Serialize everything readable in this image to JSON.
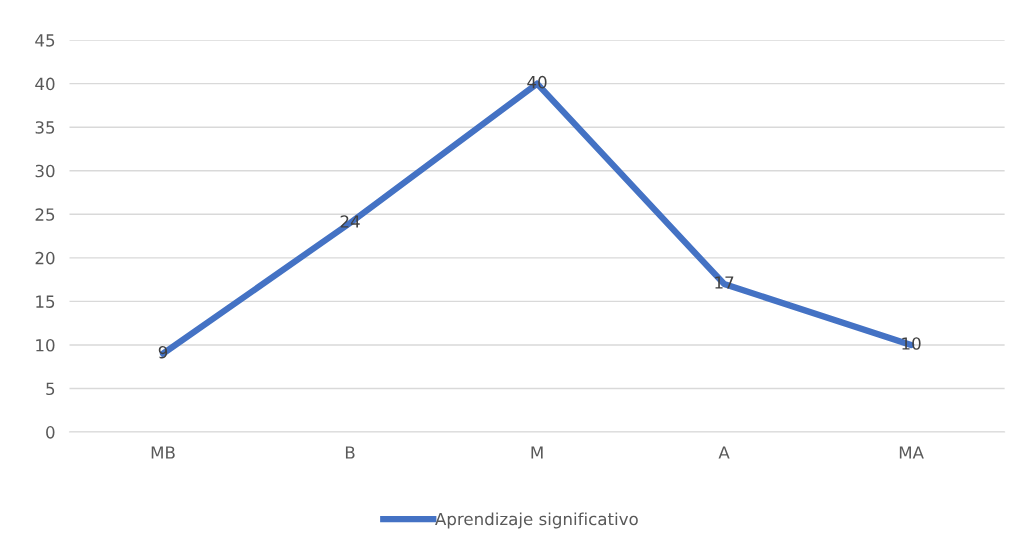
{
  "chart_data": {
    "type": "line",
    "categories": [
      "MB",
      "B",
      "M",
      "A",
      "MA"
    ],
    "series": [
      {
        "name": "Aprendizaje significativo",
        "color": "#4472c4",
        "values": [
          9,
          24,
          40,
          17,
          10
        ]
      }
    ],
    "ylim": [
      0,
      45
    ],
    "yticks": [
      0,
      5,
      10,
      15,
      20,
      25,
      30,
      35,
      40,
      45
    ],
    "grid": "y",
    "legend": "bottom",
    "data_labels": true,
    "marker": "none",
    "line_style": "solid"
  }
}
